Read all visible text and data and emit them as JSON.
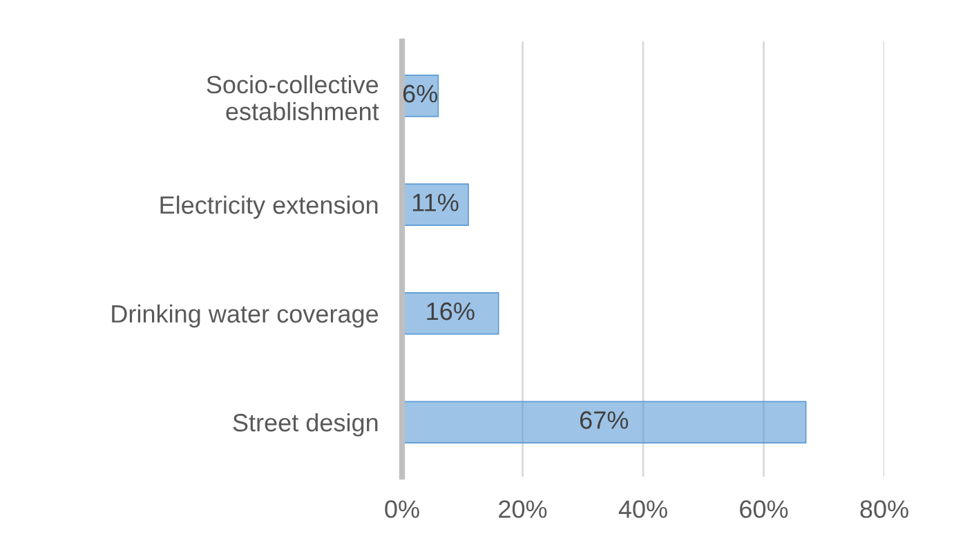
{
  "chart_data": {
    "type": "bar",
    "orientation": "horizontal",
    "categories": [
      "Socio-collective\nestablishment",
      "Electricity extension",
      "Drinking water coverage",
      "Street design"
    ],
    "values": [
      6,
      11,
      16,
      67
    ],
    "value_labels": [
      "6%",
      "11%",
      "16%",
      "67%"
    ],
    "color": "#5b9bd5",
    "xlim": [
      0,
      80
    ],
    "xticks": [
      {
        "value": 0,
        "label": "0%"
      },
      {
        "value": 20,
        "label": "20%"
      },
      {
        "value": 40,
        "label": "40%"
      },
      {
        "value": 60,
        "label": "60%"
      },
      {
        "value": 80,
        "label": "80%"
      }
    ],
    "grid": "x"
  }
}
